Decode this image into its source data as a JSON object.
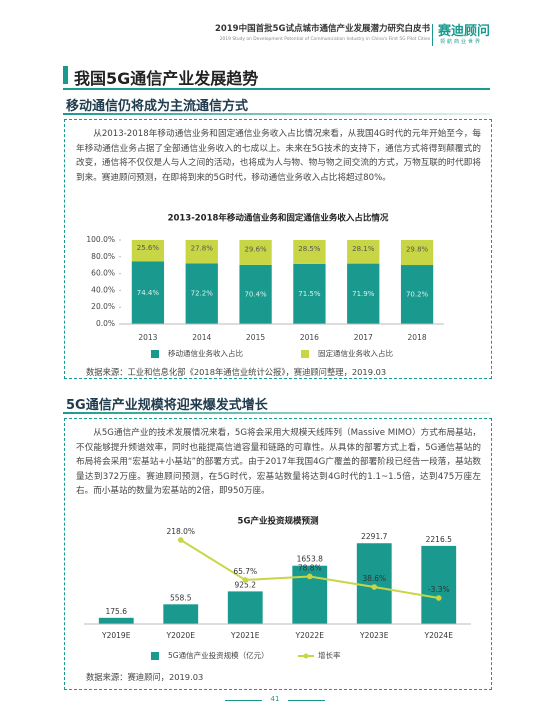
{
  "header": {
    "title": "2019中国首批5G试点城市通信产业发展潜力研究白皮书",
    "subtitle": "2019 Study on Development Potential of Communication Industry in China's First 5G Pilot Cities",
    "brand": "赛迪顾问",
    "brand_sub": "领航商业世界"
  },
  "section_title": "我国5G通信产业发展趋势",
  "part1": {
    "title": "移动通信仍将成为主流通信方式",
    "paragraph": "从2013-2018年移动通信业务和固定通信业务收入占比情况来看，从我国4G时代的元年开始至今，每年移动通信业务占据了全部通信业务收入的七成以上。未来在5G技术的支持下，通信方式将得到颠覆式的改变，通信将不仅仅是人与人之间的活动，也将成为人与物、物与物之间交流的方式，万物互联的时代即将到来。赛迪顾问预测，在即将到来的5G时代，移动通信业务收入占比将超过80%。",
    "source": "数据来源：工业和信息化部《2018年通信业统计公报》，赛迪顾问整理，2019.03"
  },
  "part2": {
    "title": "5G通信产业规模将迎来爆发式增长",
    "paragraph": "从5G通信产业的技术发展情况来看，5G将会采用大规模天线阵列（Massive MIMO）方式布局基站，不仅能够提升频谱效率，同时也能提高信道容量和链路的可靠性。从具体的部署方式上看，5G通信基站的布局将会采用“宏基站+小基站”的部署方式。由于2017年我国4G广覆盖的部署阶段已经告一段落，基站数量达到372万座。赛迪顾问预测，在5G时代，宏基站数量将达到4G时代的1.1~1.5倍，达到475万座左右。而小基站的数量为宏基站的2倍，即950万座。",
    "source": "数据来源：赛迪顾问，2019.03"
  },
  "page_number": "41",
  "chart_data": [
    {
      "type": "stacked-bar",
      "title": "2013-2018年移动通信业务和固定通信业务收入占比情况",
      "categories": [
        "2013",
        "2014",
        "2015",
        "2016",
        "2017",
        "2018"
      ],
      "series": [
        {
          "name": "移动通信业务收入占比",
          "color": "#1a9a8f",
          "values": [
            74.4,
            72.2,
            70.4,
            71.5,
            71.9,
            70.2
          ],
          "value_labels": [
            "74.4%",
            "72.2%",
            "70.4%",
            "71.5%",
            "71.9%",
            "70.2%"
          ]
        },
        {
          "name": "固定通信业务收入占比",
          "color": "#c8d645",
          "values": [
            25.6,
            27.8,
            29.6,
            28.5,
            28.1,
            29.8
          ],
          "value_labels": [
            "25.6%",
            "27.8%",
            "29.6%",
            "28.5%",
            "28.1%",
            "29.8%"
          ]
        }
      ],
      "ylim": [
        0,
        100
      ],
      "yticks": [
        {
          "value": 0,
          "label": "0.0%"
        },
        {
          "value": 20,
          "label": "20.0%"
        },
        {
          "value": 40,
          "label": "40.0%"
        },
        {
          "value": 60,
          "label": "60.0%"
        },
        {
          "value": 80,
          "label": "80.0%"
        },
        {
          "value": 100,
          "label": "100.0%"
        }
      ]
    },
    {
      "type": "bar-line",
      "title": "5G产业投资规模预测",
      "categories": [
        "Y2019E",
        "Y2020E",
        "Y2021E",
        "Y2022E",
        "Y2023E",
        "Y2024E"
      ],
      "series": [
        {
          "name": "5G通信产业投资规模（亿元）",
          "color": "#1a9a8f",
          "values": [
            175.6,
            558.5,
            925.2,
            1653.8,
            2291.7,
            2216.5
          ]
        },
        {
          "name": "增长率",
          "color": "#c8d645",
          "axis": "y2",
          "values": [
            null,
            218.0,
            65.7,
            78.8,
            38.6,
            -3.3
          ],
          "value_labels": [
            null,
            "218.0%",
            "65.7%",
            "78.8%",
            "38.6%",
            "-3.3%"
          ]
        }
      ]
    }
  ]
}
